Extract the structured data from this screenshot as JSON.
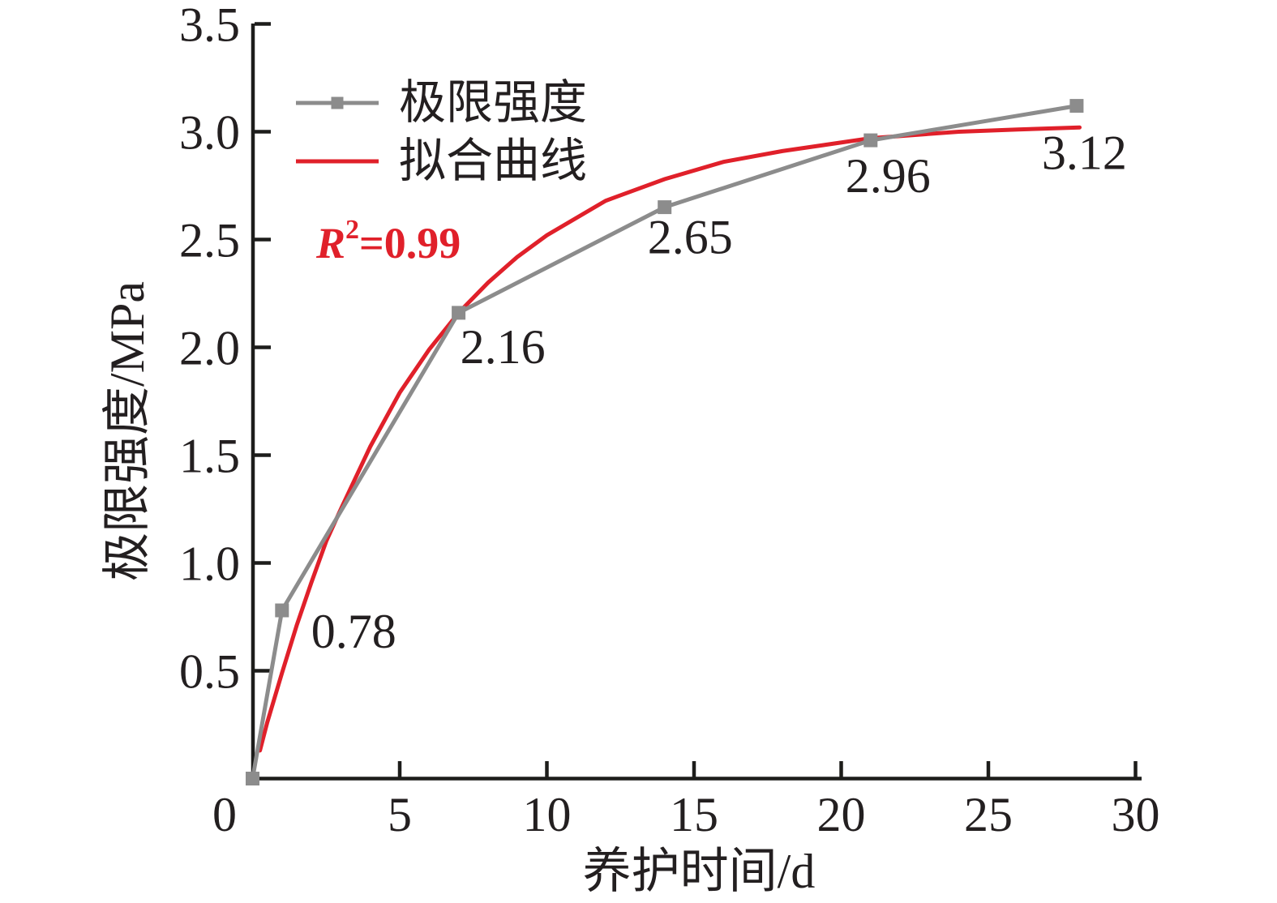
{
  "figure": {
    "background": "#ffffff",
    "axis_color": "#1d1d1b",
    "text_color": "#231f20"
  },
  "chart_data": {
    "type": "line",
    "title": "",
    "xlabel": "养护时间/d",
    "ylabel": "极限强度/MPa",
    "xlim": [
      0,
      30
    ],
    "ylim": [
      0,
      3.5
    ],
    "grid": false,
    "x_tick_values": [
      0,
      5,
      10,
      15,
      20,
      25,
      30
    ],
    "x_tick_labels": [
      "0",
      "5",
      "10",
      "15",
      "20",
      "25",
      "30"
    ],
    "y_tick_values": [
      0.5,
      1.0,
      1.5,
      2.0,
      2.5,
      3.0,
      3.5
    ],
    "y_tick_labels": [
      "0.5",
      "1.0",
      "1.5",
      "2.0",
      "2.5",
      "3.0",
      "3.5"
    ],
    "legend": {
      "position": "inside-top-left",
      "items": [
        "极限强度",
        "拟合曲线"
      ]
    },
    "annotation": {
      "text": "R²=0.99",
      "r": "R",
      "exp": "2",
      "rest": "=0.99",
      "color": "#e0202a"
    },
    "series": [
      {
        "name": "极限强度",
        "type": "line-with-markers",
        "color": "#8c8c8c",
        "marker": "square",
        "x": [
          0,
          1,
          7,
          14,
          21,
          28
        ],
        "y": [
          0,
          0.78,
          2.16,
          2.65,
          2.96,
          3.12
        ],
        "point_labels": [
          "",
          "0.78",
          "2.16",
          "2.65",
          "2.96",
          "3.12"
        ],
        "label_offsets": [
          [
            0,
            0
          ],
          [
            36,
            46
          ],
          [
            2,
            62
          ],
          [
            -21,
            57
          ],
          [
            -31,
            64
          ],
          [
            -43,
            78
          ]
        ]
      },
      {
        "name": "拟合曲线",
        "type": "fit-curve",
        "color": "#e0202a",
        "x": [
          0.25,
          0.5,
          1,
          1.5,
          2,
          2.5,
          3,
          4,
          5,
          6,
          7,
          8,
          9,
          10,
          12,
          14,
          16,
          18,
          21,
          24,
          26,
          28.1
        ],
        "y": [
          0.13,
          0.26,
          0.49,
          0.71,
          0.91,
          1.1,
          1.25,
          1.54,
          1.79,
          1.99,
          2.16,
          2.3,
          2.42,
          2.52,
          2.68,
          2.78,
          2.86,
          2.91,
          2.97,
          3.0,
          3.01,
          3.02
        ]
      }
    ]
  }
}
